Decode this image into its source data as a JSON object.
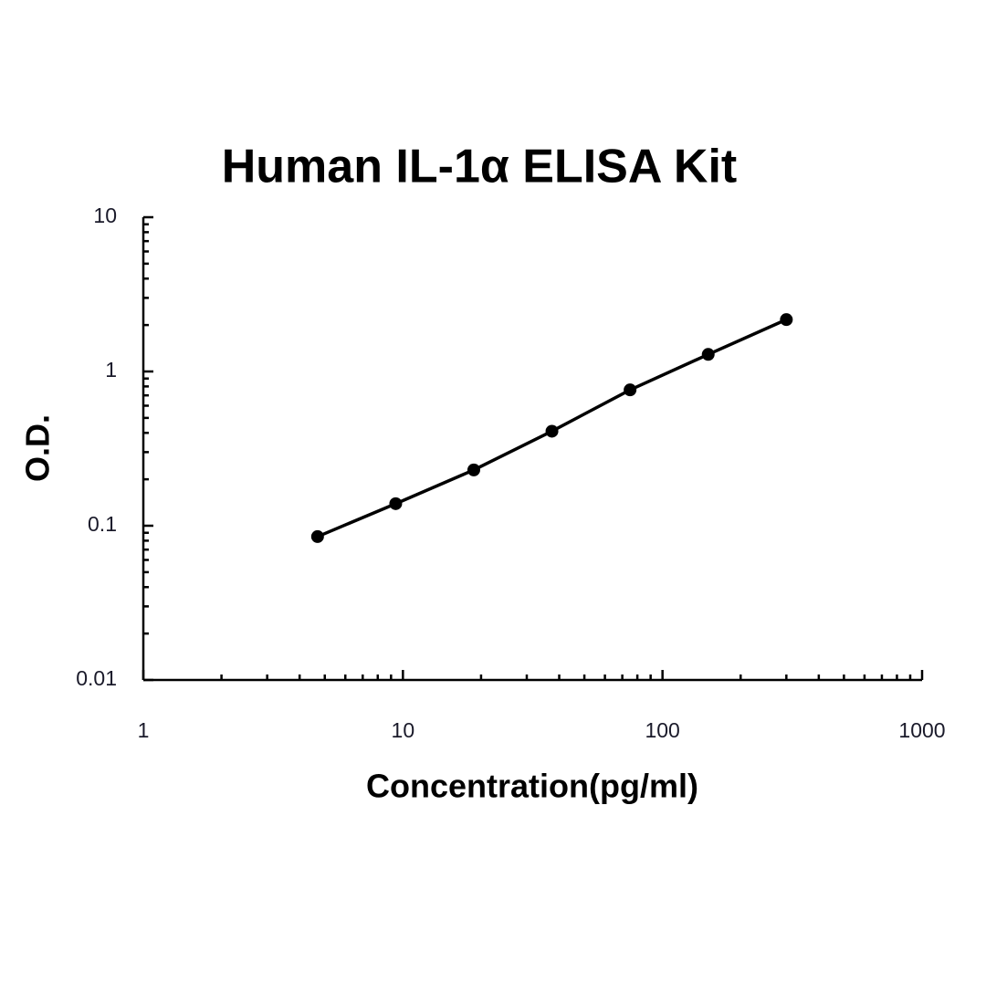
{
  "chart_data": {
    "type": "scatter",
    "title": "Human IL-1α ELISA Kit",
    "x_label": "Concentration(pg/ml)",
    "y_label": "O.D.",
    "x_log": true,
    "y_log": true,
    "minor_ticks": true,
    "xlim": [
      1,
      1000
    ],
    "xticks": [
      1,
      10,
      100,
      1000
    ],
    "ylim": [
      0.01,
      10
    ],
    "yticks": [
      0.01,
      0.1,
      1,
      10
    ],
    "series": [
      {
        "color": "#000000",
        "line": true,
        "x": [
          4.69,
          9.38,
          18.75,
          37.5,
          75,
          150,
          300
        ],
        "values": [
          0.085,
          0.139,
          0.23,
          0.41,
          0.76,
          1.29,
          2.17
        ]
      }
    ]
  }
}
